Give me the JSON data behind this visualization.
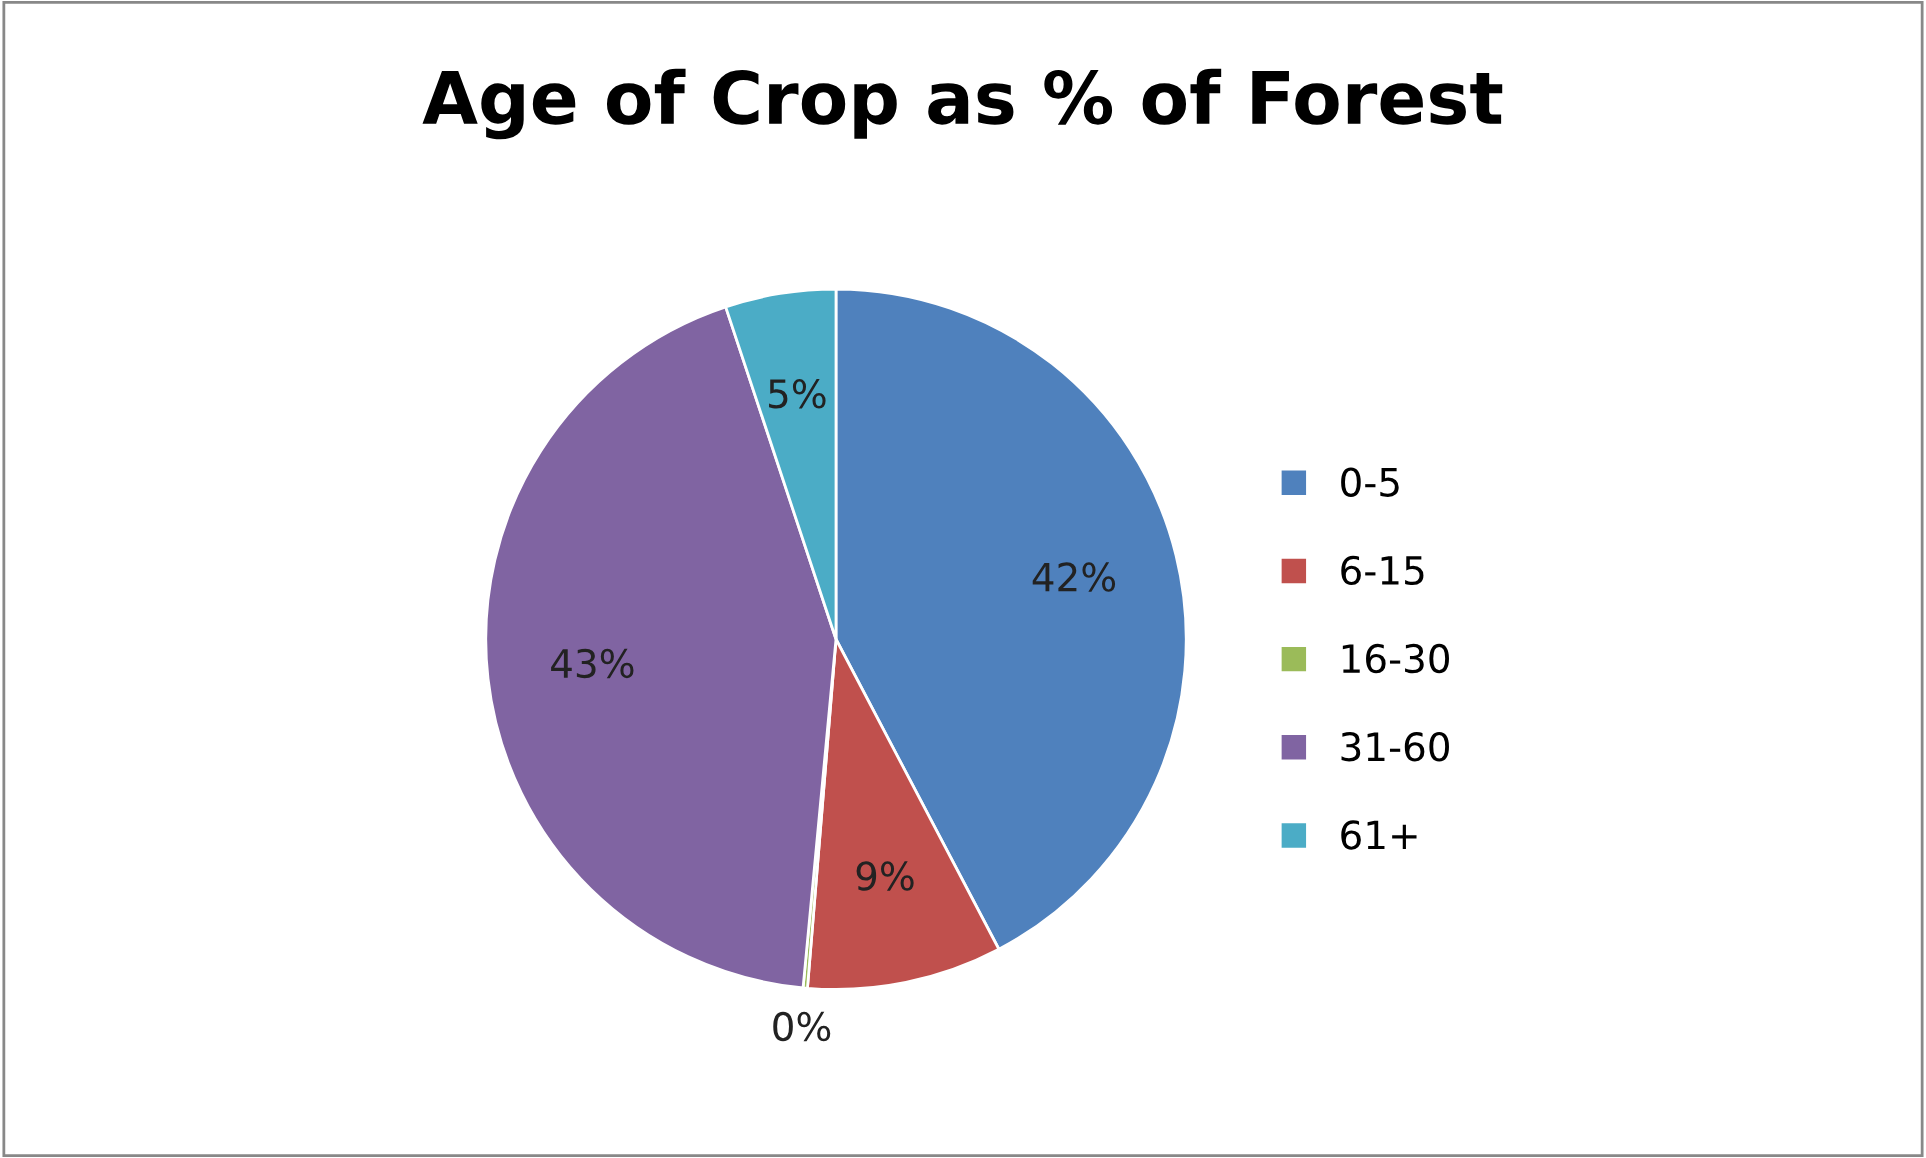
{
  "chart_data": {
    "type": "pie",
    "title": "Age of Crop as % of Forest",
    "categories": [
      "0-5",
      "6-15",
      "16-30",
      "31-60",
      "61+"
    ],
    "values": [
      42.3,
      9.0,
      0.2,
      43.4,
      5.1
    ],
    "value_labels": [
      "42%",
      "9%",
      "0%",
      "43%",
      "5%"
    ],
    "colors": [
      "#4f81bd",
      "#c0504d",
      "#9bbb59",
      "#8064a2",
      "#4bacc6"
    ],
    "legend": "right"
  }
}
